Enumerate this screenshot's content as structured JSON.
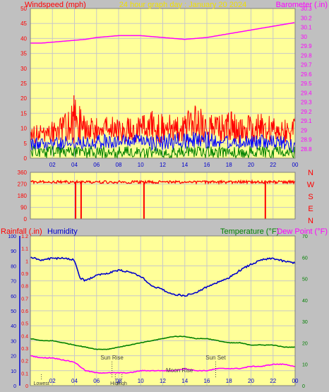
{
  "title": "24 hour graph day : January 20 2024",
  "colors": {
    "background": "#c0c0c0",
    "plot_bg": "#ffff99",
    "grid": "#c8c8c8",
    "title": "#f0e000",
    "windspeed": "#ff0000",
    "gust": "#0000ff",
    "avg": "#008000",
    "barometer": "#ff00ff",
    "direction": "#ff0000",
    "humidity": "#0000cc",
    "temperature": "#008000",
    "dewpoint": "#ff00ff",
    "rainfall": "#ff0000",
    "events": "#404040"
  },
  "chart_data": [
    {
      "type": "line",
      "id": "wind_barometer",
      "left_label": "Windspeed (mph)",
      "right_label": "Barometer (.in)",
      "left_ylim": [
        0,
        50
      ],
      "left_ticks": [
        "0",
        "5",
        "10",
        "15",
        "20",
        "25",
        "30",
        "35",
        "40",
        "45",
        "50"
      ],
      "right_ylim": [
        28.7,
        30.3
      ],
      "right_ticks": [
        "28.8",
        "28.9",
        "29",
        "29.1",
        "29.2",
        "29.3",
        "29.4",
        "29.5",
        "29.6",
        "29.7",
        "29.8",
        "29.9",
        "30",
        "30.1",
        "30.2",
        "30.3"
      ],
      "x_ticks": [
        "02",
        "04",
        "06",
        "08",
        "10",
        "12",
        "14",
        "16",
        "18",
        "20",
        "22",
        "00"
      ],
      "series": [
        {
          "role": "windspeed",
          "x": [
            0,
            1,
            2,
            3,
            4,
            5,
            6,
            7,
            8,
            9,
            10,
            11,
            12,
            13,
            14,
            15,
            16,
            17,
            18,
            19,
            20,
            21,
            22,
            23,
            24
          ],
          "min": [
            4,
            5,
            5,
            5,
            6,
            5,
            5,
            6,
            5,
            5,
            6,
            5,
            5,
            6,
            5,
            5,
            5,
            6,
            5,
            5,
            5,
            6,
            5,
            5,
            5
          ],
          "max": [
            11,
            12,
            13,
            14,
            21,
            14,
            14,
            15,
            13,
            14,
            14,
            16,
            16,
            14,
            15,
            18,
            15,
            14,
            16,
            14,
            15,
            15,
            14,
            14,
            14
          ]
        },
        {
          "role": "gust",
          "x": [
            0,
            2,
            4,
            6,
            8,
            10,
            12,
            14,
            16,
            18,
            20,
            22,
            24
          ],
          "min": [
            2,
            2,
            3,
            3,
            3,
            3,
            2,
            3,
            3,
            3,
            3,
            2,
            2
          ],
          "max": [
            7,
            7,
            8,
            8,
            8,
            8,
            8,
            9,
            9,
            8,
            8,
            8,
            7
          ]
        },
        {
          "role": "avg",
          "x": [
            0,
            2,
            4,
            6,
            8,
            10,
            12,
            14,
            16,
            18,
            20,
            22,
            24
          ],
          "min": [
            0,
            0,
            0,
            0,
            0,
            0,
            0,
            0,
            0,
            0,
            0,
            0,
            0
          ],
          "max": [
            4,
            4,
            4,
            4,
            4,
            4,
            4,
            4,
            4,
            4,
            4,
            4,
            4
          ]
        },
        {
          "role": "barometer",
          "x": [
            0,
            1,
            2,
            3,
            4,
            5,
            6,
            7,
            8,
            9,
            10,
            11,
            12,
            13,
            14,
            15,
            16,
            17,
            18,
            19,
            20,
            21,
            22,
            23,
            24
          ],
          "values": [
            29.93,
            29.93,
            29.94,
            29.95,
            29.96,
            29.97,
            29.99,
            30.0,
            30.01,
            30.01,
            30.01,
            30.0,
            29.99,
            29.98,
            29.97,
            29.98,
            29.99,
            30.01,
            30.03,
            30.05,
            30.07,
            30.09,
            30.11,
            30.13,
            30.15
          ]
        }
      ]
    },
    {
      "type": "scatter",
      "id": "wind_direction",
      "ylim": [
        0,
        360
      ],
      "left_ticks": [
        "0",
        "90",
        "180",
        "270",
        "360"
      ],
      "right_labels": [
        "N",
        "W",
        "S",
        "E",
        "N"
      ],
      "series": [
        {
          "role": "direction",
          "baseline": 285,
          "spread": 22,
          "dips_x": [
            4.1,
            4.6,
            10.3,
            21.3
          ]
        }
      ]
    },
    {
      "type": "line",
      "id": "humidity_temp",
      "labels": {
        "rainfall": "Rainfall (.in)",
        "humidity": "Humidity",
        "temperature": "Temperature (°F)",
        "dewpoint": "Dew Point (°F)"
      },
      "left_outer_ylim": [
        0,
        100
      ],
      "left_outer_ticks": [
        "0",
        "10",
        "20",
        "30",
        "40",
        "50",
        "60",
        "70",
        "80",
        "90",
        "100"
      ],
      "left_inner_ylim": [
        0,
        1.2
      ],
      "left_inner_ticks": [
        "0",
        "0.1",
        "0.2",
        "0.3",
        "0.4",
        "0.5",
        "0.6",
        "0.7",
        "0.8",
        "0.9",
        "1",
        "1.1",
        "1.2"
      ],
      "right_ylim": [
        0,
        70
      ],
      "right_ticks": [
        "0",
        "10",
        "20",
        "30",
        "40",
        "50",
        "60",
        "70"
      ],
      "x_ticks": [
        "02",
        "04",
        "06",
        "08",
        "10",
        "12",
        "14",
        "16",
        "18",
        "20",
        "22",
        "00"
      ],
      "series": [
        {
          "role": "humidity",
          "x": [
            0,
            1,
            2,
            3,
            4,
            4.5,
            5,
            6,
            7,
            8,
            9,
            10,
            11,
            12,
            13,
            14,
            15,
            16,
            17,
            18,
            19,
            20,
            21,
            22,
            23,
            24
          ],
          "values": [
            86,
            84,
            85,
            85,
            84,
            72,
            70,
            74,
            75,
            77,
            76,
            73,
            67,
            64,
            61,
            60,
            62,
            66,
            69,
            72,
            77,
            81,
            84,
            85,
            83,
            82
          ]
        },
        {
          "role": "temperature",
          "x": [
            0,
            1,
            2,
            3,
            4,
            5,
            6,
            7,
            8,
            9,
            10,
            11,
            12,
            13,
            14,
            15,
            16,
            17,
            18,
            19,
            20,
            21,
            22,
            23,
            24
          ],
          "values": [
            22,
            21,
            21,
            20,
            19,
            18,
            17,
            17,
            18,
            19,
            20,
            21,
            22,
            23,
            23,
            22,
            22,
            21,
            20,
            20,
            19,
            19,
            19,
            18,
            18
          ]
        },
        {
          "role": "dewpoint",
          "x": [
            0,
            1,
            2,
            3,
            4,
            5,
            6,
            7,
            8,
            9,
            10,
            11,
            12,
            13,
            14,
            15,
            16,
            17,
            18,
            19,
            20,
            21,
            22,
            23,
            24
          ],
          "values": [
            14,
            13,
            13,
            12,
            11,
            7,
            6,
            6,
            6,
            6,
            7,
            7,
            7,
            7,
            8,
            7,
            7,
            8,
            8,
            8,
            9,
            9,
            10,
            10,
            9
          ]
        }
      ],
      "events_top": [
        {
          "label": "Sun Rise",
          "x": 7.4
        },
        {
          "label": "Sun Set",
          "x": 16.8
        },
        {
          "label": "Moon Rise",
          "x": 13.2
        }
      ],
      "events_bottom": [
        {
          "label": "Lowest",
          "x": 1.0
        },
        {
          "label": "High",
          "x": 7.7
        },
        {
          "label": "High",
          "x": 8.3
        }
      ]
    }
  ]
}
